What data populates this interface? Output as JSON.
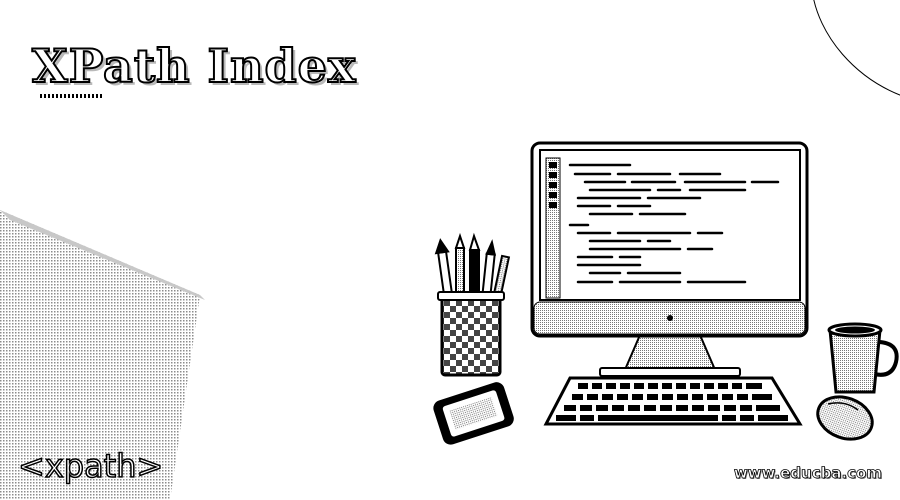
{
  "header": {
    "title": "XPath Index"
  },
  "footer": {
    "logo_text": "<xpath>",
    "site_url": "www.educba.com"
  },
  "icons": {
    "monitor": "monitor-icon",
    "keyboard": "keyboard-icon",
    "mouse": "mouse-icon",
    "phone": "phone-icon",
    "pencil_cup": "pencil-cup-icon",
    "coffee_mug": "coffee-mug-icon"
  },
  "colors": {
    "ink": "#000000",
    "paper": "#ffffff",
    "shade": "#bdbdbd"
  }
}
